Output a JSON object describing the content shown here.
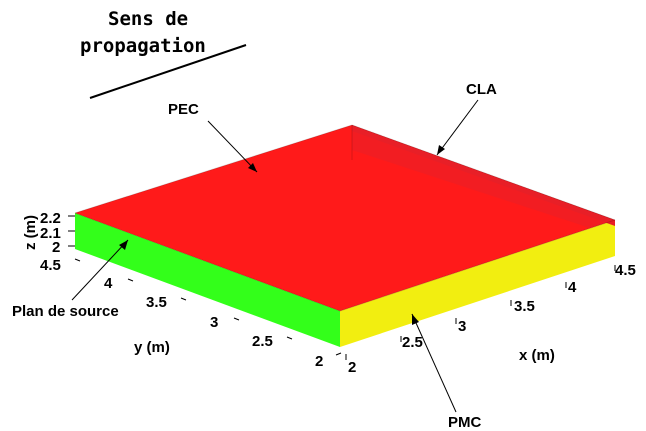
{
  "direction_label": {
    "line1": "Sens de",
    "line2": "propagation"
  },
  "labels": {
    "pec": "PEC",
    "cla": "CLA",
    "pmc": "PMC",
    "source_plane": "Plan de source"
  },
  "axes": {
    "z": {
      "label": "z (m)",
      "ticks": [
        "2.2",
        "2.1",
        "2"
      ]
    },
    "y": {
      "label": "y (m)",
      "ticks": [
        "4.5",
        "4",
        "3.5",
        "3",
        "2.5",
        "2"
      ]
    },
    "x": {
      "label": "x (m)",
      "ticks": [
        "2",
        "2.5",
        "3",
        "3.5",
        "4",
        "4.5"
      ]
    }
  },
  "colors": {
    "pec_top": "#ff1a1a",
    "cla_face": "#e81e24",
    "source_face": "#33ff1a",
    "pmc_face": "#f2ee10"
  }
}
